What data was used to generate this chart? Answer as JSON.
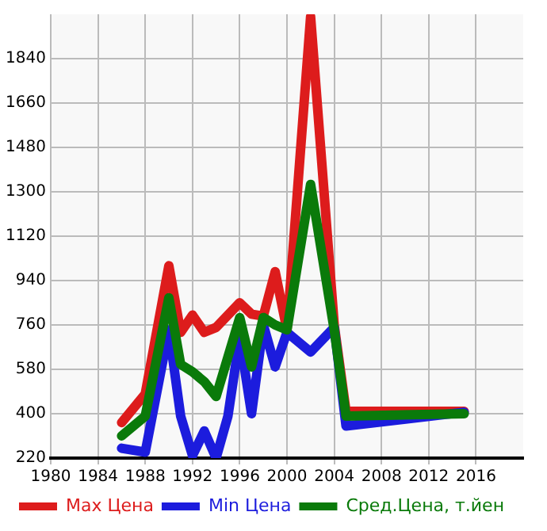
{
  "chart_data": {
    "type": "line",
    "legend": "bottom",
    "grid": true,
    "marker": "none",
    "line_style": "solid",
    "xlim": [
      1980,
      2020
    ],
    "xticks": [
      1980,
      1984,
      1988,
      1992,
      1996,
      2000,
      2004,
      2008,
      2012,
      2016
    ],
    "ylim": [
      220,
      2020
    ],
    "yticks": [
      220,
      400,
      580,
      760,
      940,
      1120,
      1300,
      1480,
      1660,
      1840
    ],
    "series": [
      {
        "name": "Max Цена",
        "color": "#dd1c1c",
        "x": [
          1986,
          1988,
          1990,
          1991,
          1992,
          1993,
          1994,
          1996,
          1997,
          1998,
          1999,
          2000,
          2002,
          2004,
          2005,
          2015
        ],
        "values": [
          364,
          480,
          1000,
          730,
          800,
          730,
          750,
          850,
          804,
          796,
          976,
          740,
          2010,
          760,
          410,
          410
        ]
      },
      {
        "name": "Min Цена",
        "color": "#1c1cdd",
        "x": [
          1986,
          1988,
          1990,
          1991,
          1992,
          1993,
          1994,
          1995,
          1996,
          1997,
          1998,
          1999,
          2000,
          2002,
          2004,
          2005,
          2015
        ],
        "values": [
          260,
          244,
          740,
          390,
          230,
          330,
          220,
          390,
          710,
          400,
          760,
          590,
          730,
          650,
          750,
          350,
          406
        ]
      },
      {
        "name": "Сред.Цена, т.йен",
        "color": "#0a7a0a",
        "x": [
          1986,
          1988,
          1990,
          1991,
          1992,
          1993,
          1994,
          1996,
          1997,
          1998,
          1999,
          2000,
          2002,
          2004,
          2005,
          2015
        ],
        "values": [
          310,
          390,
          870,
          600,
          570,
          530,
          470,
          790,
          590,
          790,
          760,
          740,
          1330,
          740,
          390,
          400
        ]
      }
    ]
  }
}
